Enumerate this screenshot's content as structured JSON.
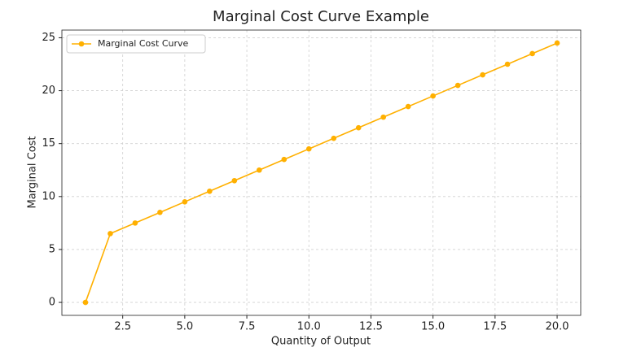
{
  "chart_data": {
    "type": "line",
    "title": "Marginal Cost Curve Example",
    "x_label": "Quantity of Output",
    "y_label": "Marginal Cost",
    "x": [
      1,
      2,
      3,
      4,
      5,
      6,
      7,
      8,
      9,
      10,
      11,
      12,
      13,
      14,
      15,
      16,
      17,
      18,
      19,
      20
    ],
    "series": [
      {
        "name": "Marginal Cost Curve",
        "color": "#ffb000",
        "values": [
          0,
          6.5,
          7.5,
          8.5,
          9.5,
          10.5,
          11.5,
          12.5,
          13.5,
          14.5,
          15.5,
          16.5,
          17.5,
          18.5,
          19.5,
          20.5,
          21.5,
          22.5,
          23.5,
          24.5
        ]
      }
    ],
    "xlim": [
      0.05,
      20.95
    ],
    "ylim": [
      -1.225,
      25.725
    ],
    "xticks": [
      2.5,
      {
        "value": 5,
        "label": "5.0"
      },
      7.5,
      {
        "value": 10,
        "label": "10.0"
      },
      12.5,
      {
        "value": 15,
        "label": "15.0"
      },
      17.5,
      {
        "value": 20,
        "label": "20.0"
      }
    ],
    "yticks": [
      0,
      5,
      10,
      15,
      20,
      25
    ],
    "grid": true,
    "legend": "upper-left"
  }
}
